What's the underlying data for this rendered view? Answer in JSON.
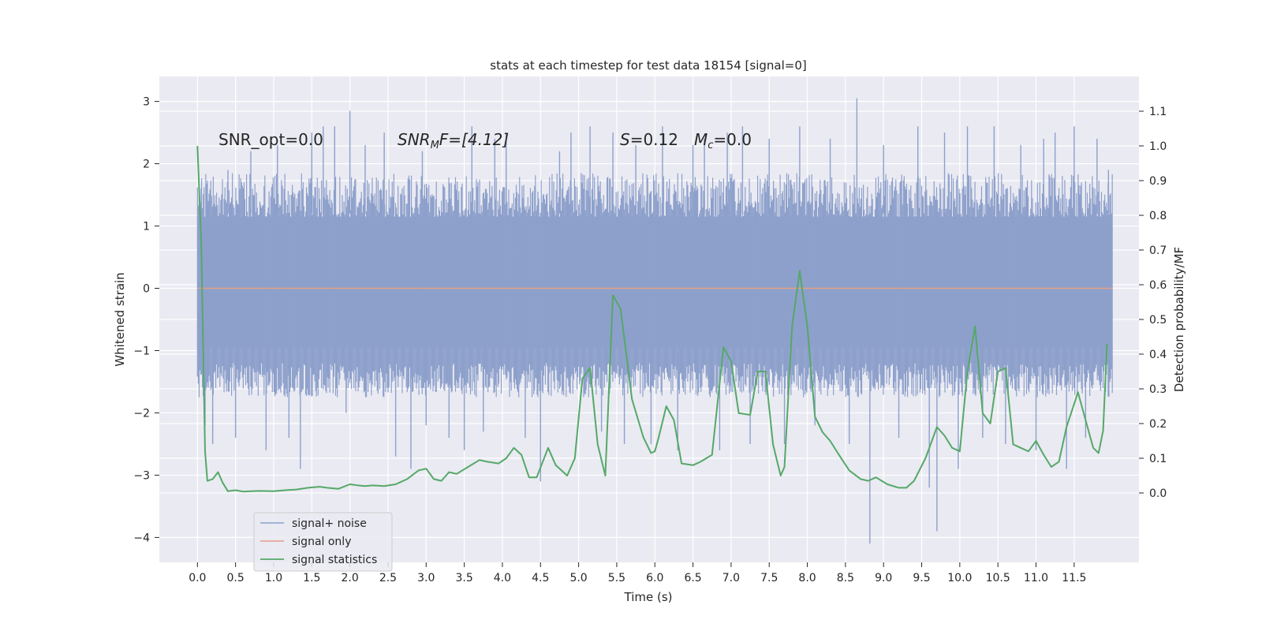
{
  "chart_data": {
    "type": "line",
    "title": "stats at each timestep for test data 18154 [signal=0]",
    "xlabel": "Time (s)",
    "ylabel": "Whitened strain",
    "ylabel_right": "Detection probability/MF",
    "xlim": [
      -0.5,
      12.35
    ],
    "ylim": [
      -4.4,
      3.4
    ],
    "ylim_right": [
      -0.2,
      1.2
    ],
    "xticks": [
      "0.0",
      "0.5",
      "1.0",
      "1.5",
      "2.0",
      "2.5",
      "3.0",
      "3.5",
      "4.0",
      "4.5",
      "5.0",
      "5.5",
      "6.0",
      "6.5",
      "7.0",
      "7.5",
      "8.0",
      "8.5",
      "9.0",
      "9.5",
      "10.0",
      "10.5",
      "11.0",
      "11.5"
    ],
    "yticks_left": [
      "3",
      "2",
      "1",
      "0",
      "−1",
      "−2",
      "−3",
      "−4"
    ],
    "yticks_right": [
      "1.1",
      "1.0",
      "0.9",
      "0.8",
      "0.7",
      "0.6",
      "0.5",
      "0.4",
      "0.3",
      "0.2",
      "0.1",
      "0.0"
    ],
    "grid": true,
    "legend_position": "lower-left",
    "annotations": {
      "snr_opt": "SNR_opt=0.0",
      "snr_mf_main": "SNR",
      "snr_mf_sub": "M",
      "snr_mf_after": "F=[4.12]",
      "s_main": "S",
      "s_after": "=0.12",
      "mc_main": "M",
      "mc_sub": "c",
      "mc_after": "=0.0"
    },
    "series": [
      {
        "name": "signal+ noise",
        "axis": "left",
        "style": "band",
        "color": "#8da0cb",
        "x_range": [
          0.0,
          12.0
        ],
        "typical_range": [
          -1.6,
          1.7
        ],
        "peaks": [
          [
            0.05,
            1.6
          ],
          [
            0.1,
            -2.2
          ],
          [
            0.2,
            -2.5
          ],
          [
            0.4,
            1.9
          ],
          [
            0.5,
            -2.4
          ],
          [
            0.7,
            2.2
          ],
          [
            0.9,
            -2.6
          ],
          [
            1.05,
            2.3
          ],
          [
            1.2,
            -2.4
          ],
          [
            1.35,
            -2.9
          ],
          [
            1.5,
            2.5
          ],
          [
            1.65,
            2.6
          ],
          [
            1.8,
            2.6
          ],
          [
            1.95,
            -2.0
          ],
          [
            2.0,
            2.85
          ],
          [
            2.2,
            2.3
          ],
          [
            2.45,
            2.5
          ],
          [
            2.6,
            -2.7
          ],
          [
            2.8,
            -2.9
          ],
          [
            2.95,
            2.2
          ],
          [
            3.0,
            -2.2
          ],
          [
            3.3,
            -2.4
          ],
          [
            3.5,
            -2.6
          ],
          [
            3.6,
            2.6
          ],
          [
            3.75,
            -2.3
          ],
          [
            3.9,
            2.4
          ],
          [
            4.05,
            2.5
          ],
          [
            4.3,
            -2.4
          ],
          [
            4.5,
            -3.1
          ],
          [
            4.75,
            2.2
          ],
          [
            4.9,
            2.5
          ],
          [
            5.15,
            2.6
          ],
          [
            5.3,
            -2.3
          ],
          [
            5.45,
            2.5
          ],
          [
            5.6,
            -2.5
          ],
          [
            5.75,
            2.3
          ],
          [
            5.95,
            -2.5
          ],
          [
            6.1,
            2.6
          ],
          [
            6.3,
            -2.6
          ],
          [
            6.5,
            2.3
          ],
          [
            6.65,
            2.4
          ],
          [
            6.85,
            -2.6
          ],
          [
            6.95,
            2.5
          ],
          [
            7.15,
            2.6
          ],
          [
            7.25,
            -2.5
          ],
          [
            7.5,
            2.4
          ],
          [
            7.7,
            -2.5
          ],
          [
            7.9,
            2.6
          ],
          [
            8.1,
            -2.2
          ],
          [
            8.3,
            2.4
          ],
          [
            8.55,
            -2.5
          ],
          [
            8.65,
            3.05
          ],
          [
            8.82,
            -4.1
          ],
          [
            9.0,
            2.3
          ],
          [
            9.2,
            -2.4
          ],
          [
            9.45,
            2.6
          ],
          [
            9.6,
            -3.2
          ],
          [
            9.7,
            -3.9
          ],
          [
            9.8,
            2.5
          ],
          [
            9.98,
            -2.9
          ],
          [
            10.1,
            2.6
          ],
          [
            10.3,
            -2.4
          ],
          [
            10.45,
            2.6
          ],
          [
            10.6,
            -2.5
          ],
          [
            10.8,
            2.3
          ],
          [
            11.0,
            -2.6
          ],
          [
            11.1,
            2.4
          ],
          [
            11.25,
            2.5
          ],
          [
            11.4,
            -2.9
          ],
          [
            11.5,
            2.6
          ],
          [
            11.65,
            -2.4
          ],
          [
            11.8,
            2.4
          ],
          [
            11.95,
            1.9
          ]
        ]
      },
      {
        "name": "signal only",
        "axis": "left",
        "style": "line",
        "color": "#e5a084",
        "x": [
          0.0,
          12.0
        ],
        "y": [
          0.0,
          0.0
        ]
      },
      {
        "name": "signal statistics",
        "axis": "right",
        "style": "line",
        "color": "#55a868",
        "x": [
          0.0,
          0.05,
          0.1,
          0.13,
          0.2,
          0.27,
          0.33,
          0.4,
          0.5,
          0.6,
          0.8,
          1.0,
          1.15,
          1.3,
          1.45,
          1.6,
          1.7,
          1.85,
          2.0,
          2.1,
          2.2,
          2.3,
          2.45,
          2.6,
          2.75,
          2.9,
          3.0,
          3.1,
          3.2,
          3.3,
          3.4,
          3.55,
          3.7,
          3.8,
          3.95,
          4.05,
          4.15,
          4.25,
          4.35,
          4.45,
          4.6,
          4.7,
          4.85,
          4.95,
          5.05,
          5.15,
          5.25,
          5.35,
          5.45,
          5.55,
          5.7,
          5.85,
          5.95,
          6.0,
          6.05,
          6.15,
          6.25,
          6.35,
          6.5,
          6.6,
          6.75,
          6.9,
          7.0,
          7.1,
          7.25,
          7.35,
          7.45,
          7.55,
          7.65,
          7.7,
          7.8,
          7.9,
          8.0,
          8.1,
          8.2,
          8.3,
          8.4,
          8.55,
          8.7,
          8.8,
          8.9,
          9.05,
          9.2,
          9.3,
          9.4,
          9.55,
          9.7,
          9.8,
          9.9,
          10.0,
          10.1,
          10.2,
          10.3,
          10.4,
          10.5,
          10.6,
          10.7,
          10.8,
          10.9,
          11.0,
          11.1,
          11.2,
          11.3,
          11.4,
          11.55,
          11.65,
          11.75,
          11.82,
          11.88,
          11.93
        ],
        "y": [
          1.0,
          0.72,
          0.12,
          0.035,
          0.04,
          0.06,
          0.03,
          0.005,
          0.008,
          0.004,
          0.006,
          0.005,
          0.008,
          0.01,
          0.015,
          0.018,
          0.015,
          0.012,
          0.025,
          0.022,
          0.02,
          0.022,
          0.02,
          0.025,
          0.04,
          0.065,
          0.07,
          0.04,
          0.035,
          0.06,
          0.055,
          0.075,
          0.095,
          0.09,
          0.085,
          0.1,
          0.13,
          0.11,
          0.045,
          0.045,
          0.13,
          0.08,
          0.05,
          0.1,
          0.33,
          0.36,
          0.14,
          0.05,
          0.57,
          0.53,
          0.27,
          0.16,
          0.115,
          0.12,
          0.16,
          0.25,
          0.21,
          0.085,
          0.08,
          0.09,
          0.11,
          0.42,
          0.38,
          0.23,
          0.225,
          0.35,
          0.35,
          0.14,
          0.05,
          0.075,
          0.48,
          0.64,
          0.48,
          0.22,
          0.175,
          0.15,
          0.115,
          0.065,
          0.04,
          0.035,
          0.045,
          0.025,
          0.015,
          0.015,
          0.035,
          0.1,
          0.19,
          0.165,
          0.13,
          0.12,
          0.35,
          0.48,
          0.23,
          0.2,
          0.35,
          0.36,
          0.14,
          0.13,
          0.12,
          0.15,
          0.11,
          0.075,
          0.09,
          0.19,
          0.29,
          0.21,
          0.13,
          0.115,
          0.18,
          0.43
        ]
      }
    ]
  }
}
